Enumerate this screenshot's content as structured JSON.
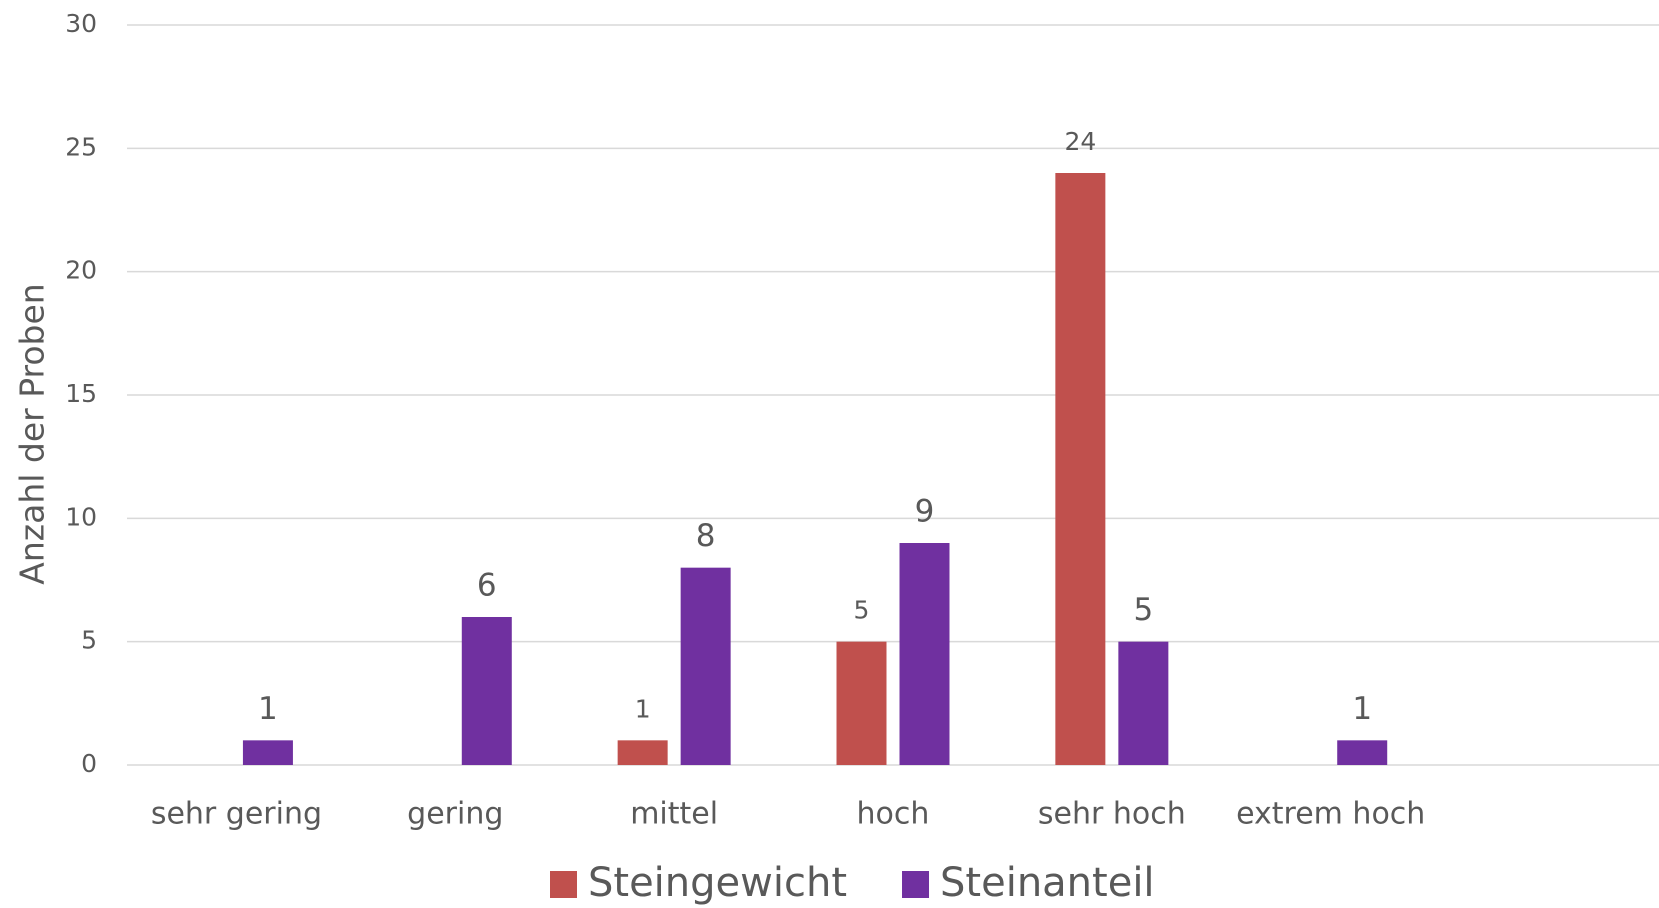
{
  "chart_data": {
    "type": "bar",
    "y_axis_label": "Anzahl der Proben",
    "categories": [
      "sehr gering",
      "gering",
      "mittel",
      "hoch",
      "sehr hoch",
      "extrem hoch",
      null
    ],
    "series": [
      {
        "name": "Steingewicht",
        "color": "#c0504d",
        "values": [
          null,
          null,
          1,
          5,
          24,
          null,
          null
        ]
      },
      {
        "name": "Steinanteil",
        "color": "#7030a0",
        "values": [
          1,
          6,
          8,
          9,
          5,
          1,
          null
        ]
      }
    ],
    "ylim": [
      0,
      30
    ],
    "yticks": [
      0,
      5,
      10,
      15,
      20,
      25,
      30
    ],
    "grid": true,
    "legend": "bottom"
  }
}
